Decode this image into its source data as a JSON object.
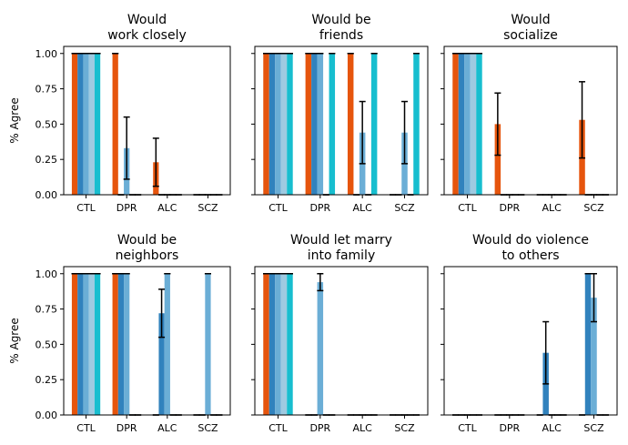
{
  "colors": [
    "#e6550d",
    "#3182bd",
    "#6baed6",
    "#9ecae1",
    "#17becf"
  ],
  "chart_data": [
    {
      "type": "bar",
      "title": "Would\nwork closely",
      "ylabel": "% Agree",
      "categories": [
        "CTL",
        "DPR",
        "ALC",
        "SCZ"
      ],
      "ylim": [
        0,
        1.05
      ],
      "yticks": [
        "0.00",
        "0.25",
        "0.50",
        "0.75",
        "1.00"
      ],
      "bars_per_group": 5,
      "values": [
        [
          1,
          1,
          1,
          1,
          1
        ],
        [
          1,
          0,
          0.33,
          0,
          0
        ],
        [
          0.23,
          0,
          0,
          0,
          0
        ],
        [
          0,
          0,
          0,
          0,
          0
        ]
      ],
      "errors": [
        [
          0,
          0,
          0,
          0,
          0
        ],
        [
          0,
          0,
          0.22,
          0,
          0
        ],
        [
          0.17,
          0,
          0,
          0,
          0
        ],
        [
          0,
          0,
          0,
          0,
          0
        ]
      ]
    },
    {
      "type": "bar",
      "title": "Would be\nfriends",
      "ylabel": "",
      "categories": [
        "CTL",
        "DPR",
        "ALC",
        "SCZ"
      ],
      "ylim": [
        0,
        1.05
      ],
      "yticks": [
        "0.00",
        "0.25",
        "0.50",
        "0.75",
        "1.00"
      ],
      "bars_per_group": 5,
      "values": [
        [
          1,
          1,
          1,
          1,
          1
        ],
        [
          1,
          1,
          1,
          0,
          1
        ],
        [
          1,
          0,
          0.44,
          0,
          1
        ],
        [
          0,
          0,
          0.44,
          0,
          1
        ]
      ],
      "errors": [
        [
          0,
          0,
          0,
          0,
          0
        ],
        [
          0,
          0,
          0,
          0,
          0
        ],
        [
          0,
          0,
          0.22,
          0,
          0
        ],
        [
          0,
          0,
          0.22,
          0,
          0
        ]
      ]
    },
    {
      "type": "bar",
      "title": "Would\nsocialize",
      "ylabel": "",
      "categories": [
        "CTL",
        "DPR",
        "ALC",
        "SCZ"
      ],
      "ylim": [
        0,
        1.05
      ],
      "yticks": [
        "0.00",
        "0.25",
        "0.50",
        "0.75",
        "1.00"
      ],
      "bars_per_group": 5,
      "values": [
        [
          1,
          1,
          1,
          1,
          1
        ],
        [
          0.5,
          0,
          0,
          0,
          0
        ],
        [
          0,
          0,
          0,
          0,
          0
        ],
        [
          0.53,
          0,
          0,
          0,
          0
        ]
      ],
      "errors": [
        [
          0,
          0,
          0,
          0,
          0
        ],
        [
          0.22,
          0,
          0,
          0,
          0
        ],
        [
          0,
          0,
          0,
          0,
          0
        ],
        [
          0.27,
          0,
          0,
          0,
          0
        ]
      ]
    },
    {
      "type": "bar",
      "title": "Would be\nneighbors",
      "ylabel": "% Agree",
      "categories": [
        "CTL",
        "DPR",
        "ALC",
        "SCZ"
      ],
      "ylim": [
        0,
        1.05
      ],
      "yticks": [
        "0.00",
        "0.25",
        "0.50",
        "0.75",
        "1.00"
      ],
      "bars_per_group": 5,
      "values": [
        [
          1,
          1,
          1,
          1,
          1
        ],
        [
          1,
          1,
          1,
          0,
          0
        ],
        [
          0,
          0.72,
          1,
          0,
          0
        ],
        [
          0,
          0,
          1,
          0,
          0
        ]
      ],
      "errors": [
        [
          0,
          0,
          0,
          0,
          0
        ],
        [
          0,
          0,
          0,
          0,
          0
        ],
        [
          0,
          0.17,
          0,
          0,
          0
        ],
        [
          0,
          0,
          0,
          0,
          0
        ]
      ]
    },
    {
      "type": "bar",
      "title": "Would let marry\ninto family",
      "ylabel": "",
      "categories": [
        "CTL",
        "DPR",
        "ALC",
        "SCZ"
      ],
      "ylim": [
        0,
        1.05
      ],
      "yticks": [
        "0.00",
        "0.25",
        "0.50",
        "0.75",
        "1.00"
      ],
      "bars_per_group": 5,
      "values": [
        [
          1,
          1,
          1,
          1,
          1
        ],
        [
          0,
          0,
          0.94,
          0,
          0
        ],
        [
          0,
          0,
          0,
          0,
          0
        ],
        [
          0,
          0,
          0,
          0,
          0
        ]
      ],
      "errors": [
        [
          0,
          0,
          0,
          0,
          0
        ],
        [
          0,
          0,
          0.06,
          0,
          0
        ],
        [
          0,
          0,
          0,
          0,
          0
        ],
        [
          0,
          0,
          0,
          0,
          0
        ]
      ]
    },
    {
      "type": "bar",
      "title": "Would do violence\nto others",
      "ylabel": "",
      "categories": [
        "CTL",
        "DPR",
        "ALC",
        "SCZ"
      ],
      "ylim": [
        0,
        1.05
      ],
      "yticks": [
        "0.00",
        "0.25",
        "0.50",
        "0.75",
        "1.00"
      ],
      "bars_per_group": 5,
      "values": [
        [
          0,
          0,
          0,
          0,
          0
        ],
        [
          0,
          0,
          0,
          0,
          0
        ],
        [
          0,
          0.44,
          0,
          0,
          0
        ],
        [
          0,
          1,
          0.83,
          0,
          0
        ]
      ],
      "errors": [
        [
          0,
          0,
          0,
          0,
          0
        ],
        [
          0,
          0,
          0,
          0,
          0
        ],
        [
          0,
          0.22,
          0,
          0,
          0
        ],
        [
          0,
          0,
          0.17,
          0,
          0
        ]
      ]
    }
  ]
}
